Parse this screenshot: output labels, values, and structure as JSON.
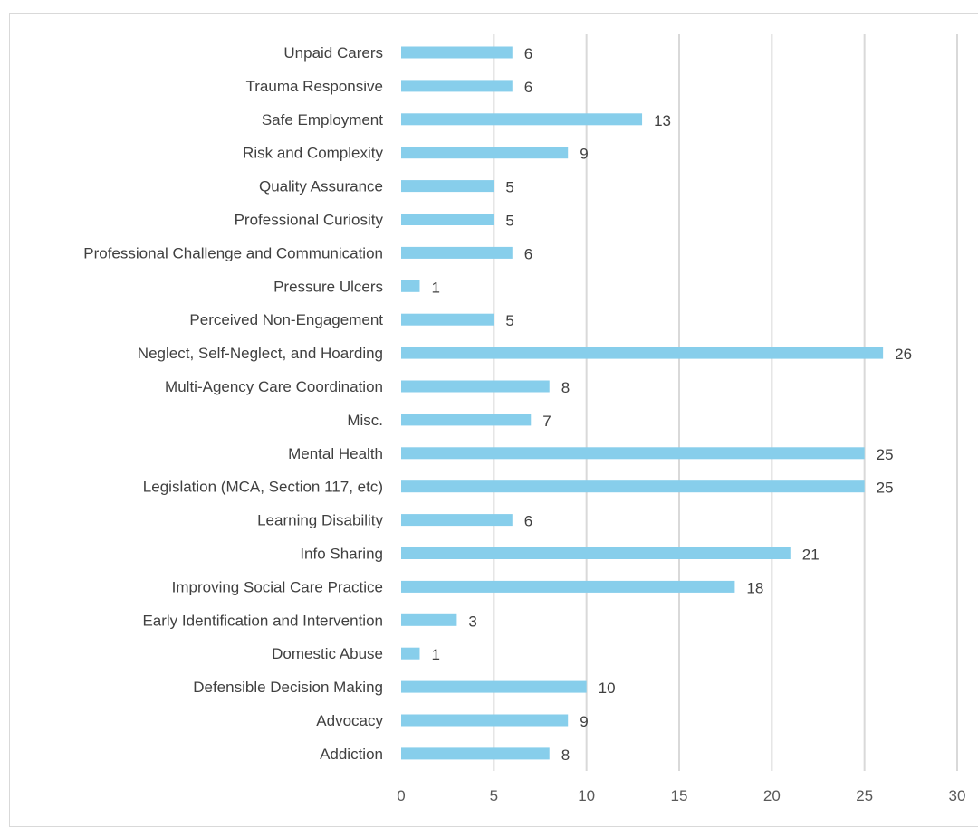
{
  "chart_data": {
    "type": "bar",
    "orientation": "horizontal",
    "title": "",
    "xlabel": "",
    "ylabel": "",
    "xlim": [
      0,
      30
    ],
    "x_ticks": [
      0,
      5,
      10,
      15,
      20,
      25,
      30
    ],
    "grid": true,
    "legend": "none",
    "bar_color": "#87CEEB",
    "categories": [
      "Unpaid Carers",
      "Trauma Responsive",
      "Safe Employment",
      "Risk and Complexity",
      "Quality Assurance",
      "Professional Curiosity",
      "Professional Challenge and Communication",
      "Pressure Ulcers",
      "Perceived Non-Engagement",
      "Neglect, Self-Neglect, and Hoarding",
      "Multi-Agency Care Coordination",
      "Misc.",
      "Mental Health",
      "Legislation (MCA, Section 117, etc)",
      "Learning Disability",
      "Info Sharing",
      "Improving Social Care Practice",
      "Early Identification and Intervention",
      "Domestic Abuse",
      "Defensible Decision Making",
      "Advocacy",
      "Addiction"
    ],
    "values": [
      6,
      6,
      13,
      9,
      5,
      5,
      6,
      1,
      5,
      26,
      8,
      7,
      25,
      25,
      6,
      21,
      18,
      3,
      1,
      10,
      9,
      8
    ]
  }
}
